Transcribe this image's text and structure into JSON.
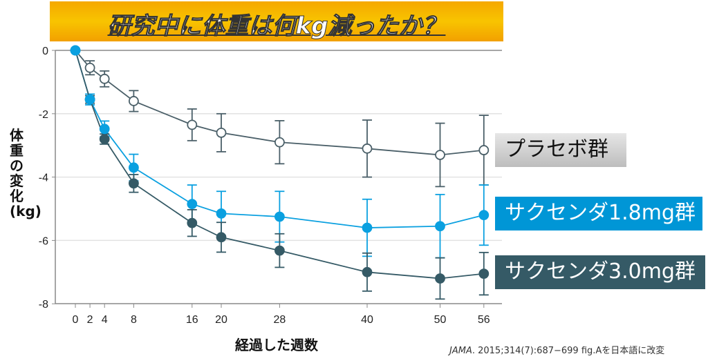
{
  "chart_data": {
    "type": "line",
    "title": "研究中に体重は何kg減ったか？",
    "xlabel": "経過した週数",
    "ylabel": "体重の変化(kg)",
    "x": [
      0,
      2,
      4,
      8,
      16,
      20,
      28,
      40,
      50,
      56
    ],
    "x_ticks": [
      "0",
      "2",
      "4",
      "8",
      "16",
      "20",
      "28",
      "40",
      "50",
      "56"
    ],
    "y_ticks": [
      "0",
      "-2",
      "-4",
      "-6",
      "-8"
    ],
    "ylim": [
      -8,
      0
    ],
    "xlim": [
      -3,
      58
    ],
    "grid": "horizontal",
    "series": [
      {
        "name": "プラセボ群",
        "color": "#4a5f68",
        "marker": "open",
        "values": [
          0,
          -0.55,
          -0.9,
          -1.6,
          -2.35,
          -2.6,
          -2.9,
          -3.1,
          -3.3,
          -3.15
        ],
        "errors": [
          0,
          0.22,
          0.25,
          0.33,
          0.5,
          0.6,
          0.68,
          0.9,
          1.0,
          1.1
        ]
      },
      {
        "name": "サクセンダ1.8mg群",
        "color": "#0aa0e0",
        "marker": "filled",
        "values": [
          0,
          -1.55,
          -2.48,
          -3.7,
          -4.85,
          -5.15,
          -5.25,
          -5.6,
          -5.55,
          -5.2
        ],
        "errors": [
          0,
          0.17,
          0.25,
          0.42,
          0.6,
          0.7,
          0.8,
          0.9,
          1.0,
          0.95
        ]
      },
      {
        "name": "サクセンダ3.0mg群",
        "color": "#355a66",
        "marker": "filled",
        "values": [
          0,
          -1.55,
          -2.8,
          -4.2,
          -5.45,
          -5.9,
          -6.32,
          -7.0,
          -7.2,
          -7.05
        ],
        "errors": [
          0,
          0.12,
          0.16,
          0.28,
          0.42,
          0.47,
          0.53,
          0.6,
          0.65,
          0.67
        ]
      }
    ]
  },
  "citation": {
    "journal": "JAMA",
    "rest": ". 2015;314(7):687−699 fig.Aを日本語に改変"
  }
}
